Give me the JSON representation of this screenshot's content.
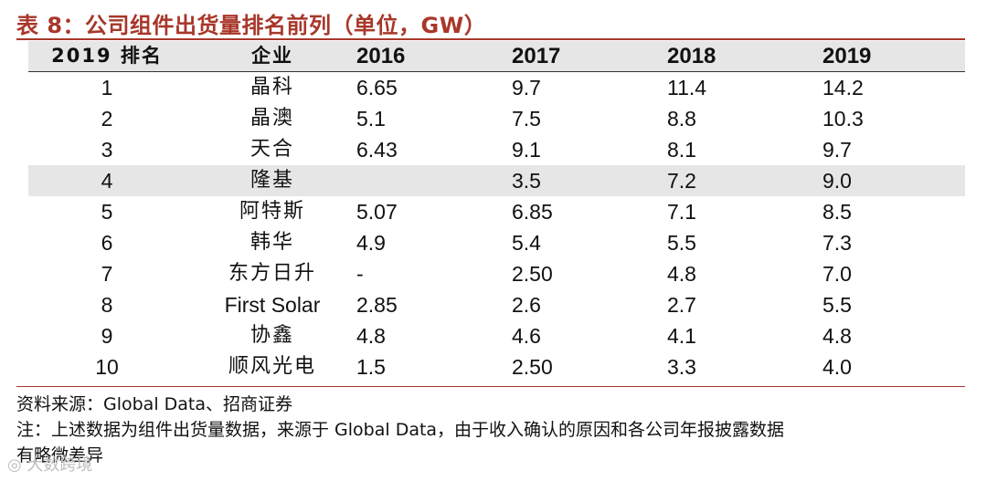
{
  "title": "表 8：公司组件出货量排名前列（单位，GW）",
  "header": {
    "rank": "2019 排名",
    "company": "企业",
    "years": [
      "2016",
      "2017",
      "2018",
      "2019"
    ]
  },
  "rows": [
    {
      "rank": "1",
      "company": "晶科",
      "values": [
        "6.65",
        "9.7",
        "11.4",
        "14.2"
      ]
    },
    {
      "rank": "2",
      "company": "晶澳",
      "values": [
        "5.1",
        "7.5",
        "8.8",
        "10.3"
      ]
    },
    {
      "rank": "3",
      "company": "天合",
      "values": [
        "6.43",
        "9.1",
        "8.1",
        "9.7"
      ]
    },
    {
      "rank": "4",
      "company": "隆基",
      "values": [
        "",
        "3.5",
        "7.2",
        "9.0"
      ]
    },
    {
      "rank": "5",
      "company": "阿特斯",
      "values": [
        "5.07",
        "6.85",
        "7.1",
        "8.5"
      ]
    },
    {
      "rank": "6",
      "company": "韩华",
      "values": [
        "4.9",
        "5.4",
        "5.5",
        "7.3"
      ]
    },
    {
      "rank": "7",
      "company": "东方日升",
      "values": [
        "-",
        "2.50",
        "4.8",
        "7.0"
      ]
    },
    {
      "rank": "8",
      "company": "First Solar",
      "values": [
        "2.85",
        "2.6",
        "2.7",
        "5.5"
      ]
    },
    {
      "rank": "9",
      "company": "协鑫",
      "values": [
        "4.8",
        "4.6",
        "4.1",
        "4.8"
      ]
    },
    {
      "rank": "10",
      "company": "顺风光电",
      "values": [
        "1.5",
        "2.50",
        "3.3",
        "4.0"
      ]
    }
  ],
  "source": "资料来源：Global Data、招商证券",
  "note_line1": "注：上述数据为组件出货量数据，来源于 Global Data，由于收入确认的原因和各公司年报披露数据",
  "note_line2": "有略微差异",
  "watermark": "◎ 大数跨境"
}
